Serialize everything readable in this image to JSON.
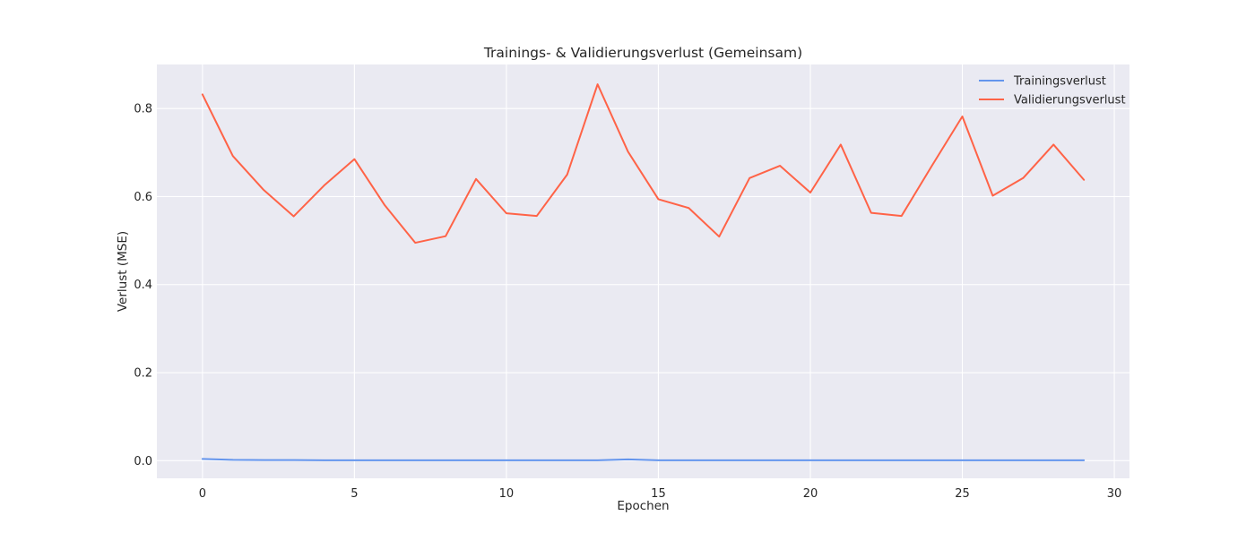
{
  "chart_data": {
    "type": "line",
    "title": "Trainings- & Validierungsverlust (Gemeinsam)",
    "xlabel": "Epochen",
    "ylabel": "Verlust (MSE)",
    "xlim": [
      -1.5,
      30.5
    ],
    "ylim": [
      -0.04,
      0.9
    ],
    "x_ticks": [
      0,
      5,
      10,
      15,
      20,
      25,
      30
    ],
    "x_tick_labels": [
      "0",
      "5",
      "10",
      "15",
      "20",
      "25",
      "30"
    ],
    "y_ticks": [
      0.0,
      0.2,
      0.4,
      0.6,
      0.8
    ],
    "y_tick_labels": [
      "0.0",
      "0.2",
      "0.4",
      "0.6",
      "0.8"
    ],
    "grid": true,
    "legend_position": "top-right",
    "background": "#eaeaf2",
    "grid_color": "#ffffff",
    "x": [
      0,
      1,
      2,
      3,
      4,
      5,
      6,
      7,
      8,
      9,
      10,
      11,
      12,
      13,
      14,
      15,
      16,
      17,
      18,
      19,
      20,
      21,
      22,
      23,
      24,
      25,
      26,
      27,
      28,
      29
    ],
    "series": [
      {
        "name": "Trainingsverlust",
        "color": "#6495ed",
        "values": [
          0.004,
          0.002,
          0.0015,
          0.0015,
          0.001,
          0.001,
          0.001,
          0.001,
          0.001,
          0.001,
          0.001,
          0.001,
          0.001,
          0.001,
          0.003,
          0.001,
          0.001,
          0.001,
          0.001,
          0.001,
          0.001,
          0.001,
          0.001,
          0.001,
          0.001,
          0.001,
          0.001,
          0.001,
          0.001,
          0.001
        ]
      },
      {
        "name": "Validierungsverlust",
        "color": "#ff6347",
        "values": [
          0.832,
          0.692,
          0.616,
          0.555,
          0.625,
          0.685,
          0.58,
          0.495,
          0.51,
          0.64,
          0.562,
          0.556,
          0.65,
          0.855,
          0.702,
          0.594,
          0.574,
          0.509,
          0.642,
          0.67,
          0.609,
          0.718,
          0.563,
          0.556,
          0.67,
          0.782,
          0.602,
          0.642,
          0.718,
          0.638
        ]
      }
    ]
  }
}
